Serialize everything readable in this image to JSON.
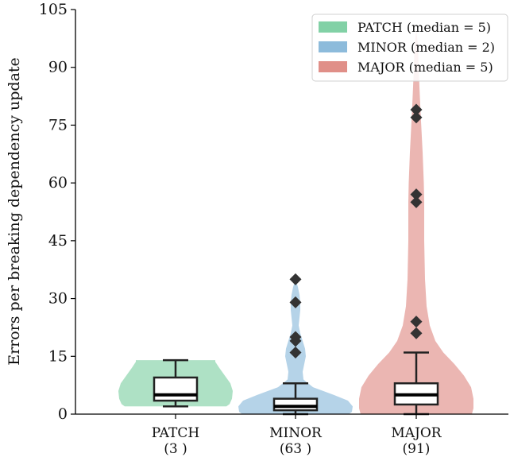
{
  "chart_data": {
    "type": "violin",
    "ylabel": "Errors per breaking dependency update",
    "ylim": [
      0,
      105
    ],
    "yticks": [
      0,
      15,
      30,
      45,
      60,
      75,
      90,
      105
    ],
    "grid": false,
    "legend_position": "top-right",
    "categories": [
      "PATCH",
      "MINOR",
      "MAJOR"
    ],
    "category_counts": [
      "(3 )",
      "(63 )",
      "(91)"
    ],
    "series": [
      {
        "name": "PATCH (median = 5)",
        "color": "#82d1a6",
        "violin_range": [
          2,
          14
        ],
        "box": {
          "whisker_low": 2,
          "q1": 3.5,
          "median": 5,
          "q3": 9.5,
          "whisker_high": 14
        },
        "outliers": []
      },
      {
        "name": "MINOR (median = 2)",
        "color": "#8dbbdb",
        "violin_range": [
          0,
          35
        ],
        "box": {
          "whisker_low": 0,
          "q1": 1,
          "median": 2,
          "q3": 4,
          "whisker_high": 8
        },
        "outliers": [
          16,
          19,
          20,
          29,
          35
        ]
      },
      {
        "name": "MAJOR (median = 5)",
        "color": "#e08f88",
        "violin_range": [
          0,
          100
        ],
        "box": {
          "whisker_low": 0,
          "q1": 2.5,
          "median": 5,
          "q3": 8,
          "whisker_high": 16
        },
        "outliers": [
          21,
          24,
          55,
          57,
          77,
          79
        ]
      }
    ]
  }
}
